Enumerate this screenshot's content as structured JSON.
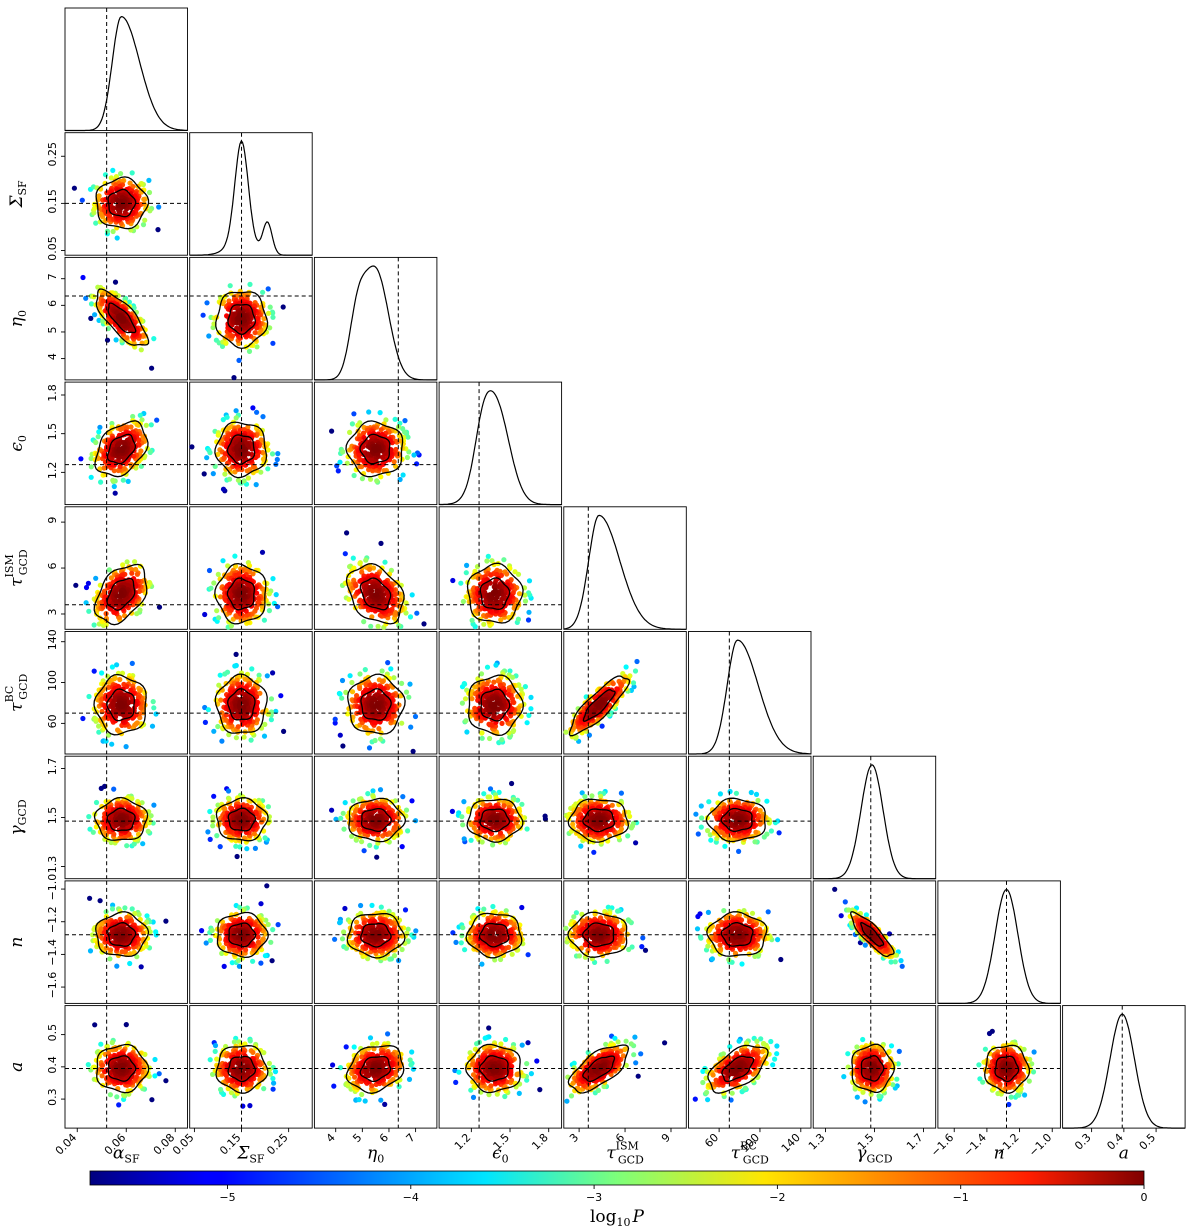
{
  "chart_data": {
    "type": "scatter",
    "description": "Corner plot: 1D marginal KDEs on diagonal, 2D scatter colored by log10 P with contours off-diagonal, dashed lines at reference values",
    "params": [
      {
        "key": "alpha",
        "sym": "α",
        "sub": "SF",
        "sup": "",
        "range": [
          0.035,
          0.085
        ],
        "ticks": [
          0.04,
          0.06,
          0.08
        ],
        "tick_labels": [
          "0.04",
          "0.06",
          "0.08"
        ],
        "truth": 0.052,
        "mean": 0.058,
        "sd": 0.0055
      },
      {
        "key": "Sigma",
        "sym": "Σ",
        "sub": "SF",
        "sup": "",
        "range": [
          0.04,
          0.3
        ],
        "ticks": [
          0.05,
          0.15,
          0.25
        ],
        "tick_labels": [
          "0.05",
          "0.15",
          "0.25"
        ],
        "truth": 0.15,
        "mean": 0.15,
        "sd": 0.028
      },
      {
        "key": "eta",
        "sym": "η",
        "sub": "0",
        "sup": "",
        "range": [
          3.2,
          7.8
        ],
        "ticks": [
          4,
          5,
          6,
          7
        ],
        "tick_labels": [
          "4",
          "5",
          "6",
          "7"
        ],
        "truth": 6.35,
        "mean": 5.5,
        "sd": 0.55
      },
      {
        "key": "eps",
        "sym": "ϵ",
        "sub": "0",
        "sup": "",
        "range": [
          0.95,
          1.9
        ],
        "ticks": [
          1.2,
          1.5,
          1.8
        ],
        "tick_labels": [
          "1.2",
          "1.5",
          "1.8"
        ],
        "truth": 1.26,
        "mean": 1.38,
        "sd": 0.11
      },
      {
        "key": "tauISM",
        "sym": "τ",
        "sub": "GCD",
        "sup": "ISM",
        "range": [
          2.0,
          10.0
        ],
        "ticks": [
          3,
          6,
          9
        ],
        "tick_labels": [
          "3",
          "6",
          "9"
        ],
        "truth": 3.6,
        "mean": 4.3,
        "sd": 1.0
      },
      {
        "key": "tauBC",
        "sym": "τ",
        "sub": "GCD",
        "sup": "BC",
        "range": [
          30,
          150
        ],
        "ticks": [
          60,
          100,
          140
        ],
        "tick_labels": [
          "60",
          "100",
          "140"
        ],
        "truth": 70,
        "mean": 78,
        "sd": 15
      },
      {
        "key": "gamma",
        "sym": "γ",
        "sub": "GCD",
        "sup": "",
        "range": [
          1.25,
          1.75
        ],
        "ticks": [
          1.3,
          1.5,
          1.7
        ],
        "tick_labels": [
          "1.3",
          "1.5",
          "1.7"
        ],
        "truth": 1.485,
        "mean": 1.49,
        "sd": 0.045
      },
      {
        "key": "n",
        "sym": "n",
        "sub": "",
        "sup": "",
        "range": [
          -1.7,
          -0.95
        ],
        "ticks": [
          -1.6,
          -1.4,
          -1.2,
          -1.0
        ],
        "tick_labels": [
          "−1.6",
          "−1.4",
          "−1.2",
          "−1.0"
        ],
        "truth": -1.28,
        "mean": -1.28,
        "sd": 0.07
      },
      {
        "key": "a",
        "sym": "a",
        "sub": "",
        "sup": "",
        "range": [
          0.21,
          0.59
        ],
        "ticks": [
          0.3,
          0.4,
          0.5
        ],
        "tick_labels": [
          "0.3",
          "0.4",
          "0.5"
        ],
        "truth": 0.395,
        "mean": 0.395,
        "sd": 0.038
      }
    ],
    "correlations": [
      {
        "i": 2,
        "j": 0,
        "r": -0.75
      },
      {
        "i": 5,
        "j": 4,
        "r": 0.85
      },
      {
        "i": 7,
        "j": 6,
        "r": -0.85
      },
      {
        "i": 8,
        "j": 4,
        "r": 0.65
      },
      {
        "i": 8,
        "j": 5,
        "r": 0.55
      },
      {
        "i": 3,
        "j": 0,
        "r": 0.35
      },
      {
        "i": 4,
        "j": 0,
        "r": 0.4
      },
      {
        "i": 4,
        "j": 2,
        "r": -0.3
      },
      {
        "i": 8,
        "j": 2,
        "r": 0.2
      }
    ],
    "colorbar": {
      "label_base": "log",
      "label_sub": "10",
      "label_var": "P",
      "range": [
        -5.75,
        0
      ],
      "ticks": [
        -5,
        -4,
        -3,
        -2,
        -1,
        0
      ],
      "tick_labels": [
        "−5",
        "−4",
        "−3",
        "−2",
        "−1",
        "0"
      ],
      "colormap": "jet"
    },
    "colors": {
      "line": "#000000",
      "frame": "#000000"
    }
  }
}
